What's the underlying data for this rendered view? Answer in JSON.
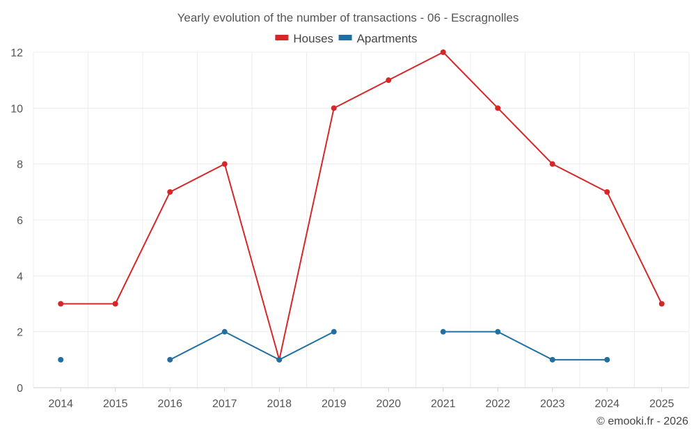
{
  "chart_data": {
    "type": "line",
    "title": "Yearly evolution of the number of transactions - 06 - Escragnolles",
    "categories": [
      "2014",
      "2015",
      "2016",
      "2017",
      "2018",
      "2019",
      "2020",
      "2021",
      "2022",
      "2023",
      "2024",
      "2025"
    ],
    "series": [
      {
        "name": "Houses",
        "color": "#d62728",
        "values": [
          3,
          3,
          7,
          8,
          1,
          10,
          11,
          12,
          10,
          8,
          7,
          3
        ]
      },
      {
        "name": "Apartments",
        "color": "#1f6fa3",
        "values": [
          1,
          null,
          1,
          2,
          1,
          2,
          null,
          2,
          2,
          1,
          1,
          null
        ]
      }
    ],
    "ylim": [
      0,
      12
    ],
    "yticks": [
      0,
      2,
      4,
      6,
      8,
      10,
      12
    ],
    "xlabel": "",
    "ylabel": "",
    "legend": "top-center",
    "grid": true
  },
  "credit": "© emooki.fr - 2026"
}
